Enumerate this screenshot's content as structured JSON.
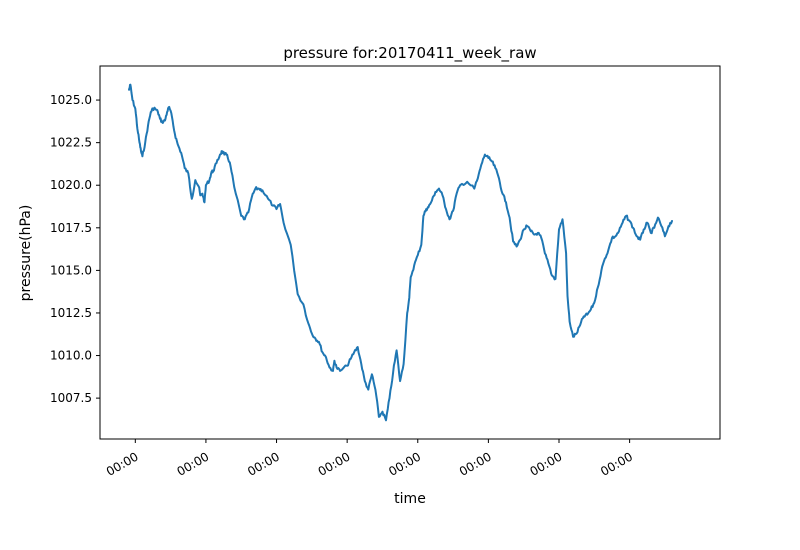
{
  "chart_data": {
    "type": "line",
    "title": "pressure for:20170411_week_raw",
    "xlabel": "time",
    "ylabel": "pressure(hPa)",
    "xlim": [
      0,
      8.78
    ],
    "ylim": [
      1005.1,
      1027.0
    ],
    "x_ticks": [
      {
        "value": 0.5,
        "label": "00:00"
      },
      {
        "value": 1.5,
        "label": "00:00"
      },
      {
        "value": 2.5,
        "label": "00:00"
      },
      {
        "value": 3.5,
        "label": "00:00"
      },
      {
        "value": 4.5,
        "label": "00:00"
      },
      {
        "value": 5.5,
        "label": "00:00"
      },
      {
        "value": 6.5,
        "label": "00:00"
      },
      {
        "value": 7.5,
        "label": "00:00"
      }
    ],
    "y_ticks": [
      {
        "value": 1007.5,
        "label": "1007.5"
      },
      {
        "value": 1010.0,
        "label": "1010.0"
      },
      {
        "value": 1012.5,
        "label": "1012.5"
      },
      {
        "value": 1015.0,
        "label": "1015.0"
      },
      {
        "value": 1017.5,
        "label": "1017.5"
      },
      {
        "value": 1020.0,
        "label": "1020.0"
      },
      {
        "value": 1022.5,
        "label": "1022.5"
      },
      {
        "value": 1025.0,
        "label": "1025.0"
      }
    ],
    "grid": false,
    "line_color": "#1f77b4",
    "series": [
      {
        "x": [
          0.41,
          0.43,
          0.46,
          0.5,
          0.53,
          0.56,
          0.58,
          0.6,
          0.64,
          0.68,
          0.72,
          0.75,
          0.78,
          0.82,
          0.85,
          0.88,
          0.92,
          0.95,
          0.98,
          1.02,
          1.06,
          1.1,
          1.15,
          1.2,
          1.25,
          1.3,
          1.35,
          1.4,
          1.42,
          1.45,
          1.48,
          1.5,
          1.55,
          1.58,
          1.6,
          1.65,
          1.7,
          1.73,
          1.76,
          1.8,
          1.85,
          1.9,
          2.0,
          2.05,
          2.1,
          2.15,
          2.2,
          2.25,
          2.3,
          2.38,
          2.45,
          2.5,
          2.55,
          2.6,
          2.7,
          2.8,
          2.88,
          2.95,
          3.0,
          3.05,
          3.1,
          3.15,
          3.2,
          3.25,
          3.3,
          3.32,
          3.35,
          3.4,
          3.5,
          3.55,
          3.6,
          3.65,
          3.7,
          3.75,
          3.8,
          3.85,
          3.9,
          3.95,
          4.0,
          4.05,
          4.1,
          4.15,
          4.2,
          4.25,
          4.3,
          4.35,
          4.38,
          4.4,
          4.45,
          4.5,
          4.55,
          4.58,
          4.62,
          4.65,
          4.7,
          4.75,
          4.8,
          4.85,
          4.9,
          4.95,
          5.0,
          5.05,
          5.1,
          5.2,
          5.3,
          5.35,
          5.4,
          5.45,
          5.5,
          5.55,
          5.6,
          5.65,
          5.7,
          5.75,
          5.8,
          5.85,
          5.9,
          5.95,
          6.0,
          6.05,
          6.1,
          6.15,
          6.2,
          6.25,
          6.3,
          6.35,
          6.4,
          6.45,
          6.5,
          6.55,
          6.6,
          6.62,
          6.65,
          6.7,
          6.75,
          6.8,
          6.85,
          6.9,
          6.95,
          7.0,
          7.05,
          7.1,
          7.15,
          7.2,
          7.25,
          7.3,
          7.35,
          7.4,
          7.45,
          7.5,
          7.55,
          7.6,
          7.65,
          7.7,
          7.75,
          7.8,
          7.85,
          7.9,
          7.95,
          8.0,
          8.05,
          8.1
        ],
        "y": [
          1025.6,
          1025.9,
          1025.0,
          1024.5,
          1023.3,
          1022.5,
          1022.0,
          1021.7,
          1022.5,
          1023.5,
          1024.3,
          1024.5,
          1024.5,
          1024.3,
          1023.9,
          1023.7,
          1023.8,
          1024.3,
          1024.6,
          1024.0,
          1023.0,
          1022.4,
          1021.9,
          1021.0,
          1020.7,
          1019.2,
          1020.3,
          1019.9,
          1019.4,
          1019.5,
          1019.0,
          1020.0,
          1020.3,
          1020.8,
          1020.8,
          1021.3,
          1021.8,
          1022.0,
          1021.8,
          1021.8,
          1021.1,
          1019.9,
          1018.2,
          1018.0,
          1018.4,
          1019.3,
          1019.8,
          1019.8,
          1019.7,
          1019.2,
          1018.8,
          1018.6,
          1018.9,
          1017.8,
          1016.5,
          1013.6,
          1013.0,
          1011.9,
          1011.3,
          1011.0,
          1010.8,
          1010.2,
          1009.9,
          1009.3,
          1009.1,
          1009.7,
          1009.3,
          1009.1,
          1009.4,
          1009.8,
          1010.2,
          1010.5,
          1009.5,
          1008.5,
          1008.0,
          1008.9,
          1008.0,
          1006.4,
          1006.7,
          1006.2,
          1007.5,
          1009.0,
          1010.3,
          1008.5,
          1009.5,
          1012.5,
          1013.4,
          1014.6,
          1015.3,
          1015.9,
          1016.5,
          1018.2,
          1018.6,
          1018.7,
          1019.1,
          1019.6,
          1019.8,
          1019.4,
          1018.6,
          1018.0,
          1018.5,
          1019.5,
          1020.0,
          1020.2,
          1019.8,
          1020.4,
          1021.2,
          1021.8,
          1021.6,
          1021.4,
          1021.0,
          1020.4,
          1019.5,
          1019.0,
          1018.1,
          1016.7,
          1016.4,
          1016.8,
          1017.4,
          1017.6,
          1017.3,
          1017.1,
          1017.2,
          1016.9,
          1016.0,
          1015.4,
          1014.7,
          1014.5,
          1017.4,
          1018.0,
          1016.0,
          1013.5,
          1012.0,
          1011.1,
          1011.3,
          1011.8,
          1012.3,
          1012.4,
          1012.7,
          1013.1,
          1014.0,
          1015.0,
          1015.7,
          1016.2,
          1016.9,
          1017.0,
          1017.3,
          1017.8,
          1018.2,
          1017.9,
          1017.5,
          1017.0,
          1016.8,
          1017.4,
          1017.8,
          1017.2,
          1017.5,
          1018.1,
          1017.6,
          1017.0,
          1017.6,
          1017.9
        ]
      }
    ]
  }
}
